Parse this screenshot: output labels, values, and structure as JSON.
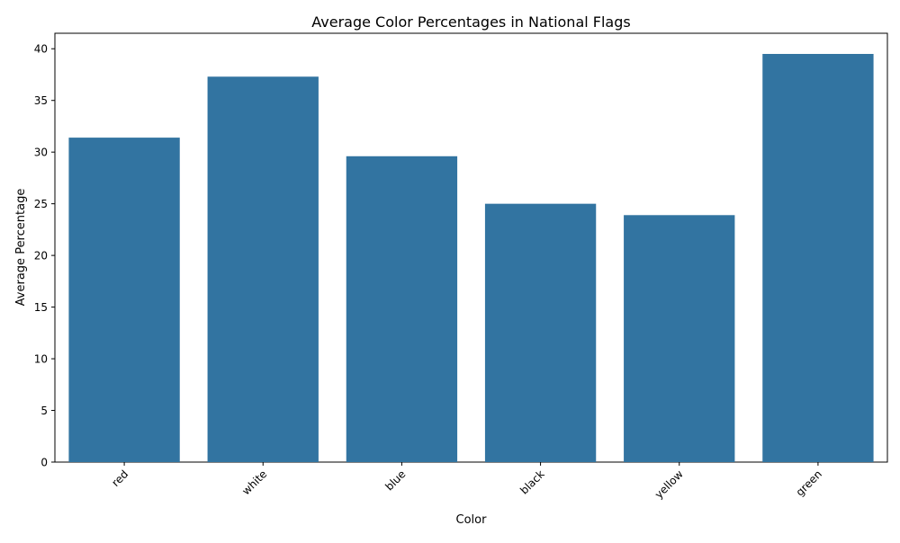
{
  "chart_data": {
    "type": "bar",
    "title": "Average Color Percentages in National Flags",
    "xlabel": "Color",
    "ylabel": "Average Percentage",
    "categories": [
      "red",
      "white",
      "blue",
      "black",
      "yellow",
      "green"
    ],
    "values": [
      31.4,
      37.3,
      29.6,
      25.0,
      23.9,
      39.5
    ],
    "ylim": [
      0,
      41.5
    ],
    "yticks": [
      0,
      5,
      10,
      15,
      20,
      25,
      30,
      35,
      40
    ],
    "xtick_rotation": 45,
    "grid": false,
    "bar_color": "#3274a1"
  }
}
